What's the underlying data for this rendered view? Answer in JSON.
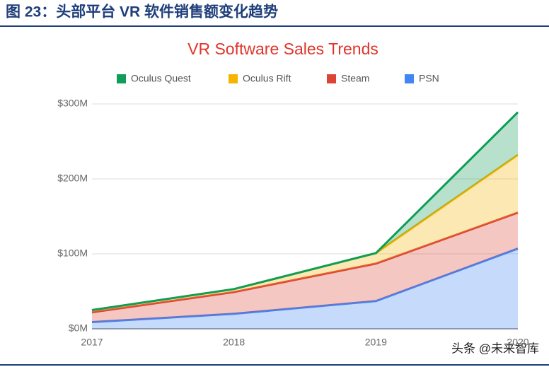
{
  "header": {
    "title": "图 23：头部平台 VR 软件销售额变化趋势"
  },
  "chart_data": {
    "type": "stacked-area",
    "title": "VR Software Sales Trends",
    "categories": [
      "2017",
      "2018",
      "2019",
      "2020"
    ],
    "series": [
      {
        "name": "Oculus Quest",
        "color": "#0f9d58",
        "values": [
          0,
          0,
          0,
          57
        ]
      },
      {
        "name": "Oculus Rift",
        "color": "#f4b400",
        "values": [
          3,
          4,
          14,
          77
        ]
      },
      {
        "name": "Steam",
        "color": "#db4437",
        "values": [
          13,
          29,
          50,
          48
        ]
      },
      {
        "name": "PSN",
        "color": "#4285f4",
        "values": [
          9,
          20,
          37,
          107
        ]
      }
    ],
    "ylim": [
      0,
      300
    ],
    "yticks": [
      {
        "value": 0,
        "label": "$0M"
      },
      {
        "value": 100,
        "label": "$100M"
      },
      {
        "value": 200,
        "label": "$200M"
      },
      {
        "value": 300,
        "label": "$300M"
      }
    ],
    "grid": true
  },
  "watermark": "头条 @未来智库"
}
